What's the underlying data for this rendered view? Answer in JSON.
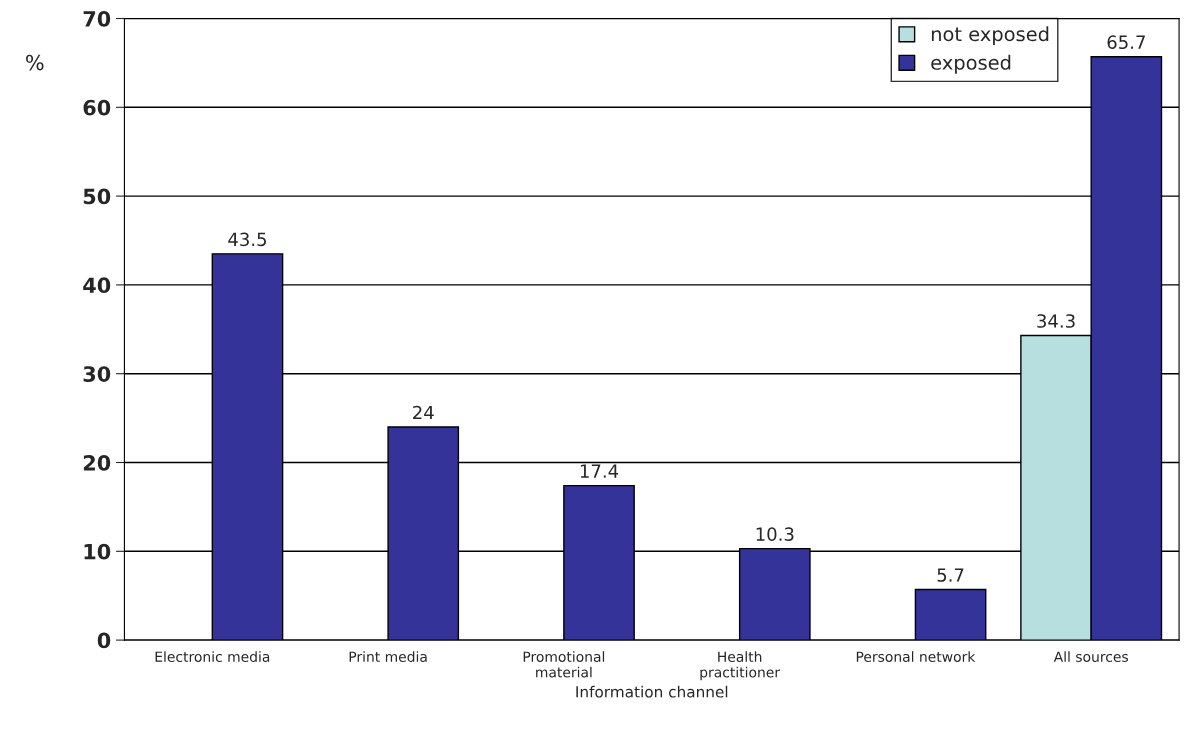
{
  "chart_data": {
    "type": "bar",
    "categories": [
      "Electronic media",
      "Print media",
      "Promotional\nmaterial",
      "Health\npractitioner",
      "Personal network",
      "All sources"
    ],
    "series": [
      {
        "name": "not exposed",
        "color": "#b8dfe0",
        "values": [
          null,
          null,
          null,
          null,
          null,
          34.3
        ]
      },
      {
        "name": "exposed",
        "color": "#333399",
        "values": [
          43.5,
          24,
          17.4,
          10.3,
          5.7,
          65.7
        ]
      }
    ],
    "xlabel": "Information channel",
    "ylabel": "%",
    "ylim": [
      0,
      70
    ],
    "yticks": [
      0,
      10,
      20,
      30,
      40,
      50,
      60,
      70
    ],
    "grid": "y",
    "legend": "top right",
    "data_labels": true
  }
}
